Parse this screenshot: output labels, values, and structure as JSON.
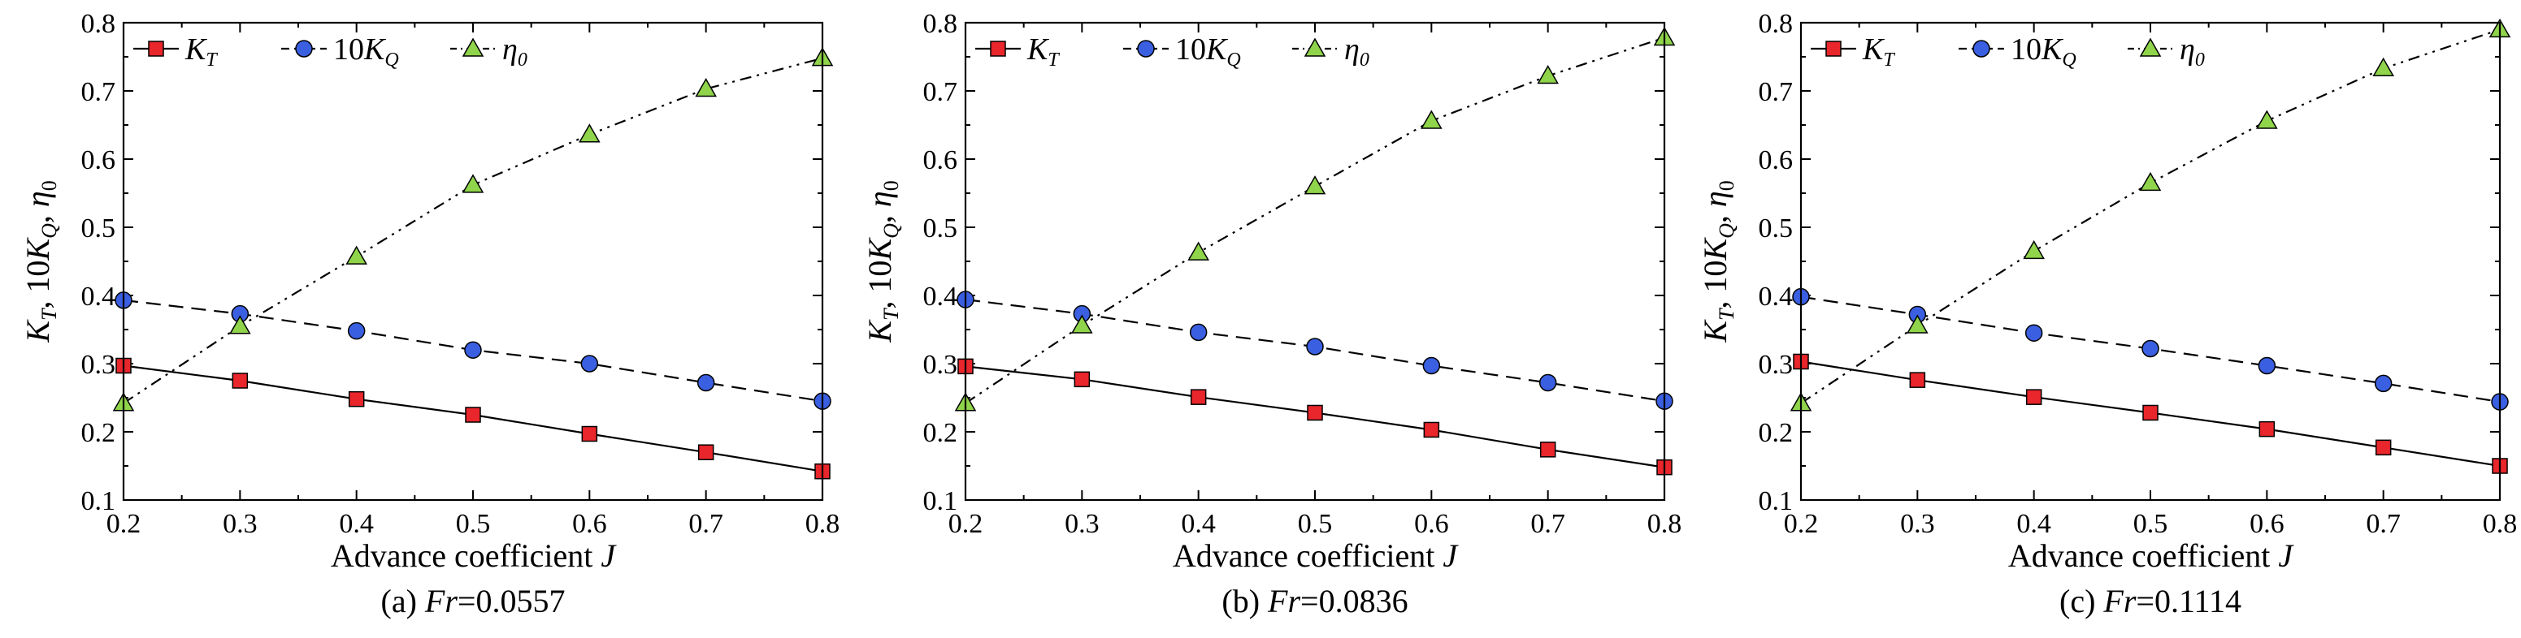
{
  "chart_data": [
    {
      "type": "line",
      "caption": {
        "prefix": "(a) ",
        "var": "Fr",
        "value": "=0.0557"
      },
      "xlabel": {
        "text": "Advance coefficient ",
        "var": "J"
      },
      "ylabel": {
        "k": "K",
        "k_sub": "T",
        "sep": ", 10",
        "k2": "K",
        "k2_sub": "Q",
        "sep2": ", ",
        "eta": "η",
        "eta_sub": "0"
      },
      "xlim": [
        0.2,
        0.8
      ],
      "ylim": [
        0.1,
        0.8
      ],
      "x_ticks": [
        "0.2",
        "0.3",
        "0.4",
        "0.5",
        "0.6",
        "0.7",
        "0.8"
      ],
      "y_ticks": [
        "0.1",
        "0.2",
        "0.3",
        "0.4",
        "0.5",
        "0.6",
        "0.7",
        "0.8"
      ],
      "grid": false,
      "legend_position": "top-left",
      "x": [
        0.2,
        0.3,
        0.4,
        0.5,
        0.6,
        0.7,
        0.8
      ],
      "series": [
        {
          "name": "K_T",
          "legend": {
            "main": "K",
            "sub": "T",
            "pre": ""
          },
          "marker": "square",
          "color": "#e8262b",
          "line": "solid",
          "values": [
            0.297,
            0.275,
            0.248,
            0.225,
            0.197,
            0.17,
            0.142
          ]
        },
        {
          "name": "10K_Q",
          "legend": {
            "main": "K",
            "sub": "Q",
            "pre": "10"
          },
          "marker": "circle",
          "color": "#3a5fe0",
          "line": "dashed",
          "values": [
            0.393,
            0.373,
            0.348,
            0.32,
            0.3,
            0.272,
            0.245
          ]
        },
        {
          "name": "η_0",
          "legend": {
            "main": "η",
            "sub": "0",
            "pre": ""
          },
          "marker": "triangle",
          "color": "#8fd44a",
          "line": "dashdotdot",
          "values": [
            0.242,
            0.355,
            0.457,
            0.562,
            0.636,
            0.703,
            0.748
          ]
        }
      ]
    },
    {
      "type": "line",
      "caption": {
        "prefix": "(b) ",
        "var": "Fr",
        "value": "=0.0836"
      },
      "xlabel": {
        "text": "Advance coefficient ",
        "var": "J"
      },
      "ylabel": {
        "k": "K",
        "k_sub": "T",
        "sep": ", 10",
        "k2": "K",
        "k2_sub": "Q",
        "sep2": ", ",
        "eta": "η",
        "eta_sub": "0"
      },
      "xlim": [
        0.2,
        0.8
      ],
      "ylim": [
        0.1,
        0.8
      ],
      "x_ticks": [
        "0.2",
        "0.3",
        "0.4",
        "0.5",
        "0.6",
        "0.7",
        "0.8"
      ],
      "y_ticks": [
        "0.1",
        "0.2",
        "0.3",
        "0.4",
        "0.5",
        "0.6",
        "0.7",
        "0.8"
      ],
      "grid": false,
      "legend_position": "top-left",
      "x": [
        0.2,
        0.3,
        0.4,
        0.5,
        0.6,
        0.7,
        0.8
      ],
      "series": [
        {
          "name": "K_T",
          "legend": {
            "main": "K",
            "sub": "T",
            "pre": ""
          },
          "marker": "square",
          "color": "#e8262b",
          "line": "solid",
          "values": [
            0.296,
            0.277,
            0.251,
            0.228,
            0.203,
            0.174,
            0.148
          ]
        },
        {
          "name": "10K_Q",
          "legend": {
            "main": "K",
            "sub": "Q",
            "pre": "10"
          },
          "marker": "circle",
          "color": "#3a5fe0",
          "line": "dashed",
          "values": [
            0.394,
            0.373,
            0.346,
            0.325,
            0.297,
            0.272,
            0.245
          ]
        },
        {
          "name": "η_0",
          "legend": {
            "main": "η",
            "sub": "0",
            "pre": ""
          },
          "marker": "triangle",
          "color": "#8fd44a",
          "line": "dashdotdot",
          "values": [
            0.242,
            0.356,
            0.463,
            0.56,
            0.656,
            0.722,
            0.778
          ]
        }
      ]
    },
    {
      "type": "line",
      "caption": {
        "prefix": "(c) ",
        "var": "Fr",
        "value": "=0.1114"
      },
      "xlabel": {
        "text": "Advance coefficient ",
        "var": "J"
      },
      "ylabel": {
        "k": "K",
        "k_sub": "T",
        "sep": ", 10",
        "k2": "K",
        "k2_sub": "Q",
        "sep2": ", ",
        "eta": "η",
        "eta_sub": "0"
      },
      "xlim": [
        0.2,
        0.8
      ],
      "ylim": [
        0.1,
        0.8
      ],
      "x_ticks": [
        "0.2",
        "0.3",
        "0.4",
        "0.5",
        "0.6",
        "0.7",
        "0.8"
      ],
      "y_ticks": [
        "0.1",
        "0.2",
        "0.3",
        "0.4",
        "0.5",
        "0.6",
        "0.7",
        "0.8"
      ],
      "grid": false,
      "legend_position": "top-left",
      "x": [
        0.2,
        0.3,
        0.4,
        0.5,
        0.6,
        0.7,
        0.8
      ],
      "series": [
        {
          "name": "K_T",
          "legend": {
            "main": "K",
            "sub": "T",
            "pre": ""
          },
          "marker": "square",
          "color": "#e8262b",
          "line": "solid",
          "values": [
            0.303,
            0.276,
            0.251,
            0.228,
            0.204,
            0.177,
            0.15
          ]
        },
        {
          "name": "10K_Q",
          "legend": {
            "main": "K",
            "sub": "Q",
            "pre": "10"
          },
          "marker": "circle",
          "color": "#3a5fe0",
          "line": "dashed",
          "values": [
            0.398,
            0.372,
            0.345,
            0.322,
            0.297,
            0.271,
            0.244
          ]
        },
        {
          "name": "η_0",
          "legend": {
            "main": "η",
            "sub": "0",
            "pre": ""
          },
          "marker": "triangle",
          "color": "#8fd44a",
          "line": "dashdotdot",
          "values": [
            0.242,
            0.356,
            0.465,
            0.565,
            0.656,
            0.733,
            0.79
          ]
        }
      ]
    }
  ]
}
